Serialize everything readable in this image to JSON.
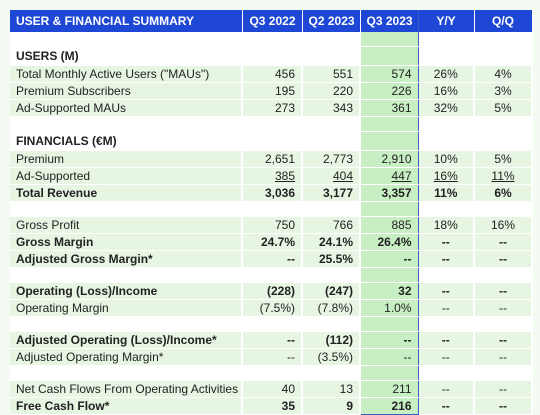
{
  "header": {
    "label": "USER & FINANCIAL SUMMARY",
    "cols": [
      "Q3 2022",
      "Q2 2023",
      "Q3 2023",
      "Y/Y",
      "Q/Q"
    ]
  },
  "sections": {
    "users": "USERS (M)",
    "financials": "FINANCIALS (€M)"
  },
  "rows": {
    "mau": {
      "label": "Total Monthly Active Users (\"MAUs\")",
      "v": [
        "456",
        "551",
        "574",
        "26%",
        "4%"
      ]
    },
    "premium_subs": {
      "label": "Premium Subscribers",
      "v": [
        "195",
        "220",
        "226",
        "16%",
        "3%"
      ]
    },
    "ad_maus": {
      "label": "Ad-Supported MAUs",
      "v": [
        "273",
        "343",
        "361",
        "32%",
        "5%"
      ]
    },
    "premium": {
      "label": "Premium",
      "v": [
        "2,651",
        "2,773",
        "2,910",
        "10%",
        "5%"
      ]
    },
    "ad_supported": {
      "label": "Ad-Supported",
      "v": [
        "385",
        "404",
        "447",
        "16%",
        "11%"
      ]
    },
    "total_revenue": {
      "label": "Total Revenue",
      "v": [
        "3,036",
        "3,177",
        "3,357",
        "11%",
        "6%"
      ]
    },
    "gross_profit": {
      "label": "Gross Profit",
      "v": [
        "750",
        "766",
        "885",
        "18%",
        "16%"
      ]
    },
    "gross_margin": {
      "label": "Gross Margin",
      "v": [
        "24.7%",
        "24.1%",
        "26.4%",
        "--",
        "--"
      ]
    },
    "adj_gross_margin": {
      "label": "Adjusted Gross Margin*",
      "v": [
        "--",
        "25.5%",
        "--",
        "--",
        "--"
      ]
    },
    "op_income": {
      "label": "Operating (Loss)/Income",
      "v": [
        "(228)",
        "(247)",
        "32",
        "--",
        "--"
      ]
    },
    "op_margin": {
      "label": "Operating Margin",
      "v": [
        "(7.5%)",
        "(7.8%)",
        "1.0%",
        "--",
        "--"
      ]
    },
    "adj_op_income": {
      "label": "Adjusted Operating (Loss)/Income*",
      "v": [
        "--",
        "(112)",
        "--",
        "--",
        "--"
      ]
    },
    "adj_op_margin": {
      "label": "Adjusted Operating Margin*",
      "v": [
        "--",
        "(3.5%)",
        "--",
        "--",
        "--"
      ]
    },
    "net_cash": {
      "label": "Net Cash Flows From Operating Activities",
      "v": [
        "40",
        "13",
        "211",
        "--",
        "--"
      ]
    },
    "fcf": {
      "label": "Free Cash Flow*",
      "v": [
        "35",
        "9",
        "216",
        "--",
        "--"
      ]
    }
  }
}
